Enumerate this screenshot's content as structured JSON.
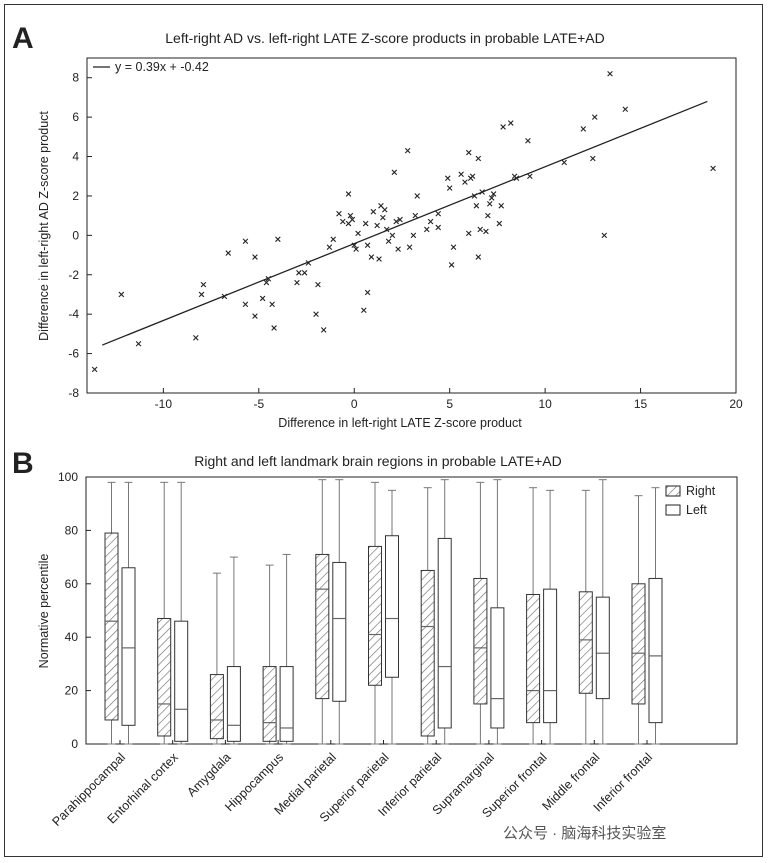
{
  "chart_data": [
    {
      "panel_label": "A",
      "type": "scatter",
      "title": "Left-right AD vs. left-right LATE Z-score products in probable LATE+AD",
      "xlabel": "Difference in left-right LATE Z-score product",
      "ylabel": "Difference in left-right AD Z-score product",
      "xlim": [
        -14,
        20
      ],
      "ylim": [
        -8,
        9
      ],
      "xticks": [
        "-10",
        "-5",
        "0",
        "5",
        "10",
        "15",
        "20"
      ],
      "yticks": [
        "-8",
        "-6",
        "-4",
        "-2",
        "0",
        "2",
        "4",
        "6",
        "8"
      ],
      "legend": "y = 0.39x + -0.42",
      "fit": {
        "slope": 0.39,
        "intercept": -0.42,
        "x_range": [
          -13.2,
          18.5
        ]
      },
      "points": [
        [
          -13.6,
          -6.8
        ],
        [
          -12.2,
          -3.0
        ],
        [
          -11.3,
          -5.5
        ],
        [
          -8.0,
          -3.0
        ],
        [
          -7.9,
          -2.5
        ],
        [
          -8.3,
          -5.2
        ],
        [
          -6.6,
          -0.9
        ],
        [
          -6.8,
          -3.1
        ],
        [
          -5.7,
          -0.3
        ],
        [
          -5.7,
          -3.5
        ],
        [
          -5.2,
          -1.1
        ],
        [
          -5.2,
          -4.1
        ],
        [
          -4.8,
          -3.2
        ],
        [
          -4.6,
          -2.4
        ],
        [
          -4.5,
          -2.2
        ],
        [
          -4.3,
          -3.5
        ],
        [
          -4.2,
          -4.7
        ],
        [
          -4.0,
          -0.2
        ],
        [
          -3.0,
          -2.4
        ],
        [
          -2.9,
          -1.9
        ],
        [
          -2.6,
          -1.9
        ],
        [
          -2.4,
          -1.4
        ],
        [
          -2.0,
          -4.0
        ],
        [
          -1.9,
          -2.5
        ],
        [
          -1.6,
          -4.8
        ],
        [
          -1.3,
          -0.6
        ],
        [
          -1.1,
          -0.2
        ],
        [
          -0.8,
          1.1
        ],
        [
          -0.6,
          0.7
        ],
        [
          -0.3,
          0.6
        ],
        [
          -0.3,
          2.1
        ],
        [
          -0.2,
          1.0
        ],
        [
          -0.1,
          0.8
        ],
        [
          0.0,
          -0.5
        ],
        [
          0.1,
          -0.7
        ],
        [
          0.2,
          0.1
        ],
        [
          0.5,
          -3.8
        ],
        [
          0.6,
          0.6
        ],
        [
          0.7,
          -2.9
        ],
        [
          0.7,
          -0.5
        ],
        [
          0.9,
          -1.1
        ],
        [
          1.0,
          1.2
        ],
        [
          1.2,
          0.5
        ],
        [
          1.3,
          -1.2
        ],
        [
          1.4,
          1.5
        ],
        [
          1.5,
          0.9
        ],
        [
          1.6,
          1.3
        ],
        [
          1.7,
          0.3
        ],
        [
          1.8,
          -0.3
        ],
        [
          2.0,
          0.0
        ],
        [
          2.1,
          3.2
        ],
        [
          2.2,
          0.7
        ],
        [
          2.3,
          -0.7
        ],
        [
          2.4,
          0.8
        ],
        [
          2.8,
          4.3
        ],
        [
          2.9,
          -0.6
        ],
        [
          3.1,
          0.0
        ],
        [
          3.2,
          1.0
        ],
        [
          3.3,
          2.0
        ],
        [
          3.8,
          0.3
        ],
        [
          4.0,
          0.7
        ],
        [
          4.4,
          1.1
        ],
        [
          4.4,
          0.4
        ],
        [
          4.9,
          2.9
        ],
        [
          5.0,
          2.4
        ],
        [
          5.1,
          -1.5
        ],
        [
          5.2,
          -0.6
        ],
        [
          5.6,
          3.1
        ],
        [
          5.8,
          2.7
        ],
        [
          6.0,
          0.1
        ],
        [
          6.0,
          4.2
        ],
        [
          6.1,
          2.9
        ],
        [
          6.2,
          3.0
        ],
        [
          6.3,
          2.0
        ],
        [
          6.4,
          1.5
        ],
        [
          6.5,
          -1.1
        ],
        [
          6.5,
          3.9
        ],
        [
          6.6,
          0.3
        ],
        [
          6.7,
          2.2
        ],
        [
          6.9,
          0.2
        ],
        [
          7.0,
          1.0
        ],
        [
          7.1,
          1.6
        ],
        [
          7.2,
          1.9
        ],
        [
          7.3,
          2.1
        ],
        [
          7.6,
          0.6
        ],
        [
          7.7,
          1.5
        ],
        [
          7.8,
          5.5
        ],
        [
          8.2,
          5.7
        ],
        [
          8.4,
          3.0
        ],
        [
          8.5,
          2.9
        ],
        [
          9.1,
          4.8
        ],
        [
          9.2,
          3.0
        ],
        [
          11.0,
          3.7
        ],
        [
          12.0,
          5.4
        ],
        [
          12.5,
          3.9
        ],
        [
          12.6,
          6.0
        ],
        [
          13.1,
          0.0
        ],
        [
          13.4,
          8.2
        ],
        [
          14.2,
          6.4
        ],
        [
          18.8,
          3.4
        ]
      ]
    },
    {
      "panel_label": "B",
      "type": "box",
      "title": "Right and left landmark brain regions in probable LATE+AD",
      "ylabel": "Normative percentile",
      "ylim": [
        0,
        100
      ],
      "yticks": [
        "0",
        "20",
        "40",
        "60",
        "80",
        "100"
      ],
      "legend": [
        "Right",
        "Left"
      ],
      "categories": [
        "Parahippocampal",
        "Entorhinal cortex",
        "Amygdala",
        "Hippocampus",
        "Medial parietal",
        "Superior parietal",
        "Inferior parietal",
        "Supramarginal",
        "Superior frontal",
        "Middle frontal",
        "Inferior frontal"
      ],
      "series": [
        {
          "name": "Right",
          "boxes": [
            {
              "min": 0,
              "q1": 9,
              "median": 46,
              "q3": 79,
              "max": 98
            },
            {
              "min": 0,
              "q1": 3,
              "median": 15,
              "q3": 47,
              "max": 98
            },
            {
              "min": 0,
              "q1": 2,
              "median": 9,
              "q3": 26,
              "max": 64
            },
            {
              "min": 0,
              "q1": 1,
              "median": 8,
              "q3": 29,
              "max": 67
            },
            {
              "min": 0,
              "q1": 17,
              "median": 58,
              "q3": 71,
              "max": 99
            },
            {
              "min": 0,
              "q1": 22,
              "median": 41,
              "q3": 74,
              "max": 98
            },
            {
              "min": 0,
              "q1": 3,
              "median": 44,
              "q3": 65,
              "max": 96
            },
            {
              "min": 0,
              "q1": 15,
              "median": 36,
              "q3": 62,
              "max": 98
            },
            {
              "min": 0,
              "q1": 8,
              "median": 20,
              "q3": 56,
              "max": 96
            },
            {
              "min": 0,
              "q1": 19,
              "median": 39,
              "q3": 57,
              "max": 95
            },
            {
              "min": 0,
              "q1": 15,
              "median": 34,
              "q3": 60,
              "max": 93
            }
          ]
        },
        {
          "name": "Left",
          "boxes": [
            {
              "min": 0,
              "q1": 7,
              "median": 36,
              "q3": 66,
              "max": 98
            },
            {
              "min": 0,
              "q1": 1,
              "median": 13,
              "q3": 46,
              "max": 98
            },
            {
              "min": 0,
              "q1": 1,
              "median": 7,
              "q3": 29,
              "max": 70
            },
            {
              "min": 0,
              "q1": 1,
              "median": 6,
              "q3": 29,
              "max": 71
            },
            {
              "min": 0,
              "q1": 16,
              "median": 47,
              "q3": 68,
              "max": 99
            },
            {
              "min": 0,
              "q1": 25,
              "median": 47,
              "q3": 78,
              "max": 95
            },
            {
              "min": 0,
              "q1": 6,
              "median": 29,
              "q3": 77,
              "max": 99
            },
            {
              "min": 0,
              "q1": 6,
              "median": 17,
              "q3": 51,
              "max": 99
            },
            {
              "min": 0,
              "q1": 8,
              "median": 20,
              "q3": 58,
              "max": 95
            },
            {
              "min": 0,
              "q1": 17,
              "median": 34,
              "q3": 55,
              "max": 99
            },
            {
              "min": 0,
              "q1": 8,
              "median": 33,
              "q3": 62,
              "max": 96
            }
          ]
        }
      ]
    }
  ],
  "watermark": "公众号 · 脑海科技实验室"
}
